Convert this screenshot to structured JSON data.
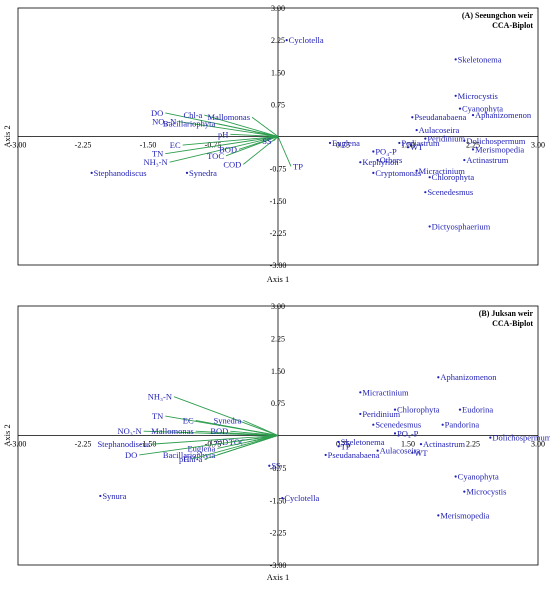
{
  "chart_data": [
    {
      "type": "scatter",
      "title": "(A) Seeungchon weir",
      "subtitle": "CCA-Biplot",
      "xlabel": "Axis 1",
      "ylabel": "Axis 2",
      "xlim": [
        -3.0,
        3.0
      ],
      "ylim": [
        -3.0,
        3.0
      ],
      "xticks": [
        "-3.00",
        "-2.25",
        "-1.50",
        "-0.75",
        "0.75",
        "1.50",
        "2.25",
        "3.00"
      ],
      "yticks": [
        "3.00",
        "2.25",
        "1.50",
        "0.75",
        "-0.75",
        "-1.50",
        "-2.25",
        "-3.00"
      ],
      "grid": false,
      "environmental_vectors": [
        {
          "label": "DO",
          "x": -1.3,
          "y": 0.55
        },
        {
          "label": "NO₃-N",
          "x": -1.15,
          "y": 0.35
        },
        {
          "label": "Bacillariophyta",
          "x": -0.7,
          "y": 0.3
        },
        {
          "label": "Chl-a",
          "x": -0.85,
          "y": 0.5
        },
        {
          "label": "Mallomonas",
          "x": -0.3,
          "y": 0.45
        },
        {
          "label": "pH",
          "x": -0.55,
          "y": 0.05
        },
        {
          "label": "EC",
          "x": -1.1,
          "y": -0.2
        },
        {
          "label": "TN",
          "x": -1.3,
          "y": -0.4
        },
        {
          "label": "NH₃-N",
          "x": -1.25,
          "y": -0.6
        },
        {
          "label": "TOC",
          "x": -0.6,
          "y": -0.45
        },
        {
          "label": "BOD",
          "x": -0.45,
          "y": -0.3
        },
        {
          "label": "COD",
          "x": -0.4,
          "y": -0.65
        },
        {
          "label": "SS",
          "x": -0.05,
          "y": -0.1
        },
        {
          "label": "TP",
          "x": 0.15,
          "y": -0.7
        }
      ],
      "species": [
        {
          "label": "Cyclotella",
          "x": 0.1,
          "y": 2.25
        },
        {
          "label": "Skeletonema",
          "x": 2.05,
          "y": 1.8
        },
        {
          "label": "Microcystis",
          "x": 2.05,
          "y": 0.95
        },
        {
          "label": "Cyanophyta",
          "x": 2.1,
          "y": 0.65
        },
        {
          "label": "Aphanizomenon",
          "x": 2.25,
          "y": 0.5
        },
        {
          "label": "Pseudanabaena",
          "x": 1.55,
          "y": 0.45
        },
        {
          "label": "Aulacoseira",
          "x": 1.6,
          "y": 0.15
        },
        {
          "label": "Peridinium",
          "x": 1.7,
          "y": -0.05
        },
        {
          "label": "Dolichospermum",
          "x": 2.15,
          "y": -0.1
        },
        {
          "label": "Euglena",
          "x": 0.6,
          "y": -0.15
        },
        {
          "label": "Pediastrum",
          "x": 1.4,
          "y": -0.15
        },
        {
          "label": "PO₄-P",
          "x": 1.1,
          "y": -0.35
        },
        {
          "label": "WT",
          "x": 1.5,
          "y": -0.25
        },
        {
          "label": "Merismopedia",
          "x": 2.25,
          "y": -0.3
        },
        {
          "label": "Kephyrion",
          "x": 0.95,
          "y": -0.6
        },
        {
          "label": "Others",
          "x": 1.15,
          "y": -0.55
        },
        {
          "label": "Actinastrum",
          "x": 2.15,
          "y": -0.55
        },
        {
          "label": "Cryptomonas",
          "x": 1.1,
          "y": -0.85
        },
        {
          "label": "Micractinium",
          "x": 1.6,
          "y": -0.8
        },
        {
          "label": "Chlorophyta",
          "x": 1.75,
          "y": -0.95
        },
        {
          "label": "Scenedesmus",
          "x": 1.7,
          "y": -1.3
        },
        {
          "label": "Dictyosphaerium",
          "x": 1.75,
          "y": -2.1
        },
        {
          "label": "Stephanodiscus",
          "x": -2.15,
          "y": -0.85
        },
        {
          "label": "Synedra",
          "x": -1.05,
          "y": -0.85
        }
      ]
    },
    {
      "type": "scatter",
      "title": "(B) Juksan weir",
      "subtitle": "CCA-Biplot",
      "xlabel": "Axis 1",
      "ylabel": "Axis 2",
      "xlim": [
        -3.0,
        3.0
      ],
      "ylim": [
        -3.0,
        3.0
      ],
      "xticks": [
        "-3.00",
        "-2.25",
        "-1.50",
        "-0.75",
        "0.75",
        "1.50",
        "2.25",
        "3.00"
      ],
      "yticks": [
        "3.00",
        "2.25",
        "1.50",
        "0.75",
        "-0.75",
        "-1.50",
        "-2.25",
        "-3.00"
      ],
      "grid": false,
      "environmental_vectors": [
        {
          "label": "NH₃-N",
          "x": -1.2,
          "y": 0.9
        },
        {
          "label": "TN",
          "x": -1.3,
          "y": 0.45
        },
        {
          "label": "EC",
          "x": -0.95,
          "y": 0.35
        },
        {
          "label": "NO₃-N",
          "x": -1.55,
          "y": 0.1
        },
        {
          "label": "Mallomonas",
          "x": -0.95,
          "y": 0.1
        },
        {
          "label": "BOD",
          "x": -0.55,
          "y": 0.1
        },
        {
          "label": "Synedra",
          "x": -0.4,
          "y": 0.35
        },
        {
          "label": "COD",
          "x": -0.55,
          "y": -0.15
        },
        {
          "label": "TOC",
          "x": -0.35,
          "y": -0.15
        },
        {
          "label": "Euglena",
          "x": -0.7,
          "y": -0.3
        },
        {
          "label": "Bacillariophyta",
          "x": -0.7,
          "y": -0.45
        },
        {
          "label": "Chl-a",
          "x": -0.85,
          "y": -0.55
        },
        {
          "label": "pH",
          "x": -1.0,
          "y": -0.55
        },
        {
          "label": "DO",
          "x": -1.6,
          "y": -0.45
        },
        {
          "label": "Stephanodiscus",
          "x": -1.45,
          "y": -0.2
        }
      ],
      "species": [
        {
          "label": "Micractinium",
          "x": 0.95,
          "y": 1.0
        },
        {
          "label": "Aphanizomenon",
          "x": 1.85,
          "y": 1.35
        },
        {
          "label": "Peridinium",
          "x": 0.95,
          "y": 0.5
        },
        {
          "label": "Chlorophyta",
          "x": 1.35,
          "y": 0.6
        },
        {
          "label": "Eudorina",
          "x": 2.1,
          "y": 0.6
        },
        {
          "label": "Scenedesmus",
          "x": 1.1,
          "y": 0.25
        },
        {
          "label": "Pandorina",
          "x": 1.9,
          "y": 0.25
        },
        {
          "label": "PO₄-P",
          "x": 1.35,
          "y": 0.05
        },
        {
          "label": "Skeletonema",
          "x": 0.7,
          "y": -0.15
        },
        {
          "label": "Aulacoseira",
          "x": 1.15,
          "y": -0.35
        },
        {
          "label": "Actinastrum",
          "x": 1.65,
          "y": -0.2
        },
        {
          "label": "Dolichospermum",
          "x": 2.45,
          "y": -0.05
        },
        {
          "label": "TP",
          "x": 0.7,
          "y": -0.25
        },
        {
          "label": "Pseudanabaena",
          "x": 0.55,
          "y": -0.45
        },
        {
          "label": "WT",
          "x": 1.55,
          "y": -0.4
        },
        {
          "label": "SS",
          "x": -0.1,
          "y": -0.7
        },
        {
          "label": "Cyanophyta",
          "x": 2.05,
          "y": -0.95
        },
        {
          "label": "Microcystis",
          "x": 2.15,
          "y": -1.3
        },
        {
          "label": "Merismopedia",
          "x": 1.85,
          "y": -1.85
        },
        {
          "label": "Synura",
          "x": -2.05,
          "y": -1.4
        },
        {
          "label": "Cyclotella",
          "x": 0.05,
          "y": -1.45
        }
      ]
    }
  ]
}
